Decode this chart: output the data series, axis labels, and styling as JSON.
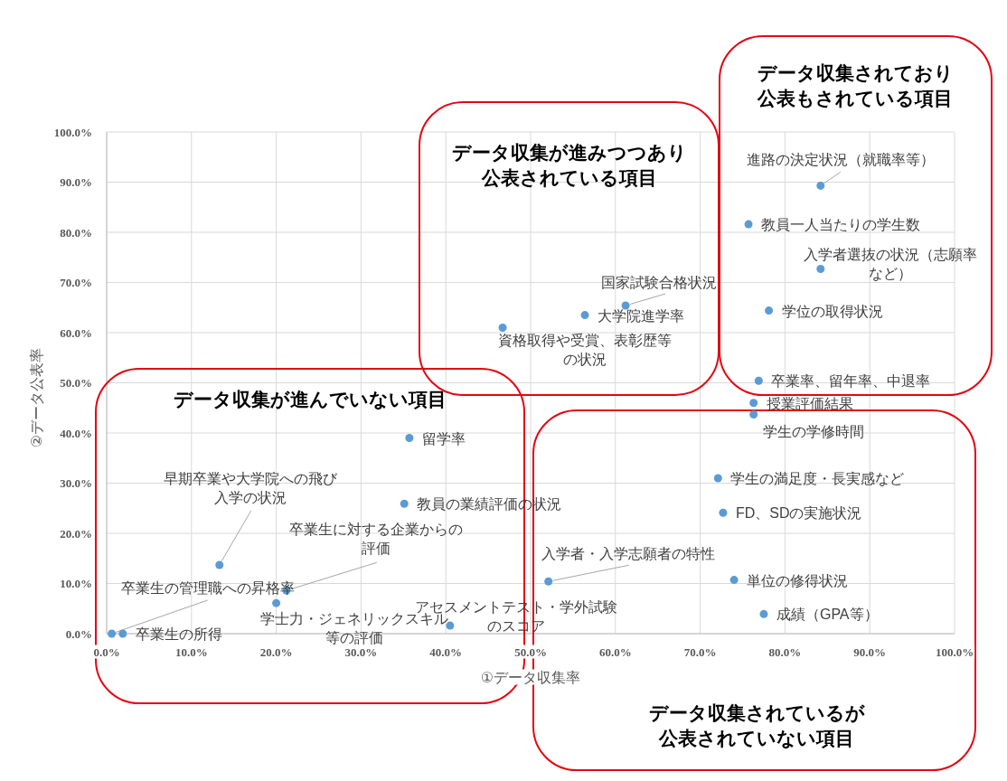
{
  "chart_data": {
    "type": "scatter",
    "xlabel": "①データ収集率",
    "ylabel": "②データ公表率",
    "xlim": [
      0,
      100
    ],
    "ylim": [
      0,
      100
    ],
    "xticks": [
      {
        "value": 0,
        "label": "0.0%"
      },
      {
        "value": 10,
        "label": "10.0%"
      },
      {
        "value": 20,
        "label": "20.0%"
      },
      {
        "value": 30,
        "label": "30.0%"
      },
      {
        "value": 40,
        "label": "40.0%"
      },
      {
        "value": 50,
        "label": "50.0%"
      },
      {
        "value": 60,
        "label": "60.0%"
      },
      {
        "value": 70,
        "label": "70.0%"
      },
      {
        "value": 80,
        "label": "80.0%"
      },
      {
        "value": 90,
        "label": "90.0%"
      },
      {
        "value": 100,
        "label": "100.0%"
      }
    ],
    "yticks": [
      {
        "value": 0,
        "label": "0.0%"
      },
      {
        "value": 10,
        "label": "10.0%"
      },
      {
        "value": 20,
        "label": "20.0%"
      },
      {
        "value": 30,
        "label": "30.0%"
      },
      {
        "value": 40,
        "label": "40.0%"
      },
      {
        "value": 50,
        "label": "50.0%"
      },
      {
        "value": 60,
        "label": "60.0%"
      },
      {
        "value": 70,
        "label": "70.0%"
      },
      {
        "value": 80,
        "label": "80.0%"
      },
      {
        "value": 90,
        "label": "90.0%"
      },
      {
        "value": 100,
        "label": "100.0%"
      }
    ],
    "grid": true,
    "marker": "circle",
    "color": "#5b9bd5",
    "x": [
      84.2,
      75.7,
      84.2,
      78.1,
      76.9,
      76.3,
      76.3,
      72.1,
      72.7,
      52.1,
      74.0,
      77.5,
      61.2,
      56.4,
      46.7,
      35.7,
      35.1,
      13.3,
      21.2,
      20.0,
      40.5,
      0.6,
      1.9
    ],
    "values": [
      89.3,
      81.6,
      72.7,
      64.4,
      50.4,
      46.0,
      43.7,
      31.0,
      24.1,
      10.4,
      10.7,
      3.9,
      65.4,
      63.5,
      61.0,
      39.0,
      25.9,
      13.7,
      8.6,
      6.1,
      1.6,
      0,
      0
    ],
    "annotations": [
      "データ収集が進みつつあり公表されている項目",
      "データ収集されており公表もされている項目",
      "データ収集が進んでいない項目",
      "データ収集されているが公表されていない項目",
      {
        "text": "進路の決定状況（就職率等）",
        "x": 84.2,
        "y": 89.3
      },
      {
        "text": "教員一人当たりの学生数",
        "x": 75.7,
        "y": 81.6
      },
      {
        "text": "入学者選抜の状況（志願率など）",
        "x": 84.2,
        "y": 72.7
      },
      {
        "text": "学位の取得状況",
        "x": 78.1,
        "y": 64.4
      },
      {
        "text": "卒業率、留年率、中退率",
        "x": 76.9,
        "y": 50.4
      },
      {
        "text": "授業評価結果",
        "x": 76.3,
        "y": 46.0
      },
      {
        "text": "学生の学修時間",
        "x": 76.3,
        "y": 43.7
      },
      {
        "text": "学生の満足度・長実感など",
        "x": 72.1,
        "y": 31.0
      },
      {
        "text": "FD、SDの実施状況",
        "x": 72.7,
        "y": 24.1
      },
      {
        "text": "入学者・入学志願者の特性",
        "x": 52.1,
        "y": 10.4
      },
      {
        "text": "単位の修得状況",
        "x": 74.0,
        "y": 10.7
      },
      {
        "text": "成績（GPA等）",
        "x": 77.5,
        "y": 3.9
      },
      {
        "text": "国家試験合格状況",
        "x": 61.2,
        "y": 65.4
      },
      {
        "text": "大学院進学率",
        "x": 56.4,
        "y": 63.5
      },
      {
        "text": "資格取得や受賞、表彰歴等の状況",
        "x": 46.7,
        "y": 61.0
      },
      {
        "text": "留学率",
        "x": 35.7,
        "y": 39.0
      },
      {
        "text": "教員の業績評価の状況",
        "x": 35.1,
        "y": 25.9
      },
      {
        "text": "早期卒業や大学院への飛び入学の状況",
        "x": 13.3,
        "y": 13.7
      },
      {
        "text": "卒業生に対する企業からの評価",
        "x": 21.2,
        "y": 8.6
      },
      {
        "text": "学士力・ジェネリックスキル等の評価",
        "x": 20.0,
        "y": 6.1
      },
      {
        "text": "アセスメントテスト・学外試験のスコア",
        "x": 40.5,
        "y": 1.6
      },
      {
        "text": "卒業生の管理職への昇格率",
        "x": 0.6,
        "y": 0
      },
      {
        "text": "卒業生の所得",
        "x": 1.9,
        "y": 0
      }
    ]
  }
}
